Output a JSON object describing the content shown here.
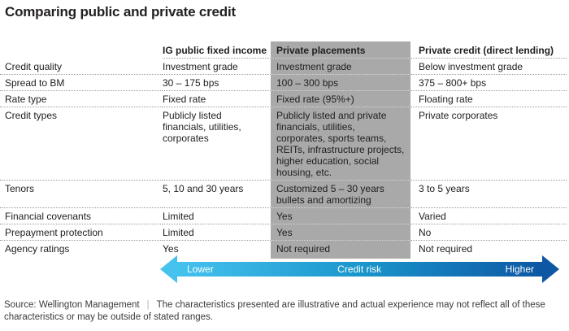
{
  "title": "Comparing public and private credit",
  "table": {
    "columns": [
      "IG public fixed income",
      "Private placements",
      "Private credit (direct lending)"
    ],
    "rows": [
      {
        "label": "Credit quality",
        "ig": "Investment grade",
        "pp": "Investment grade",
        "pc": "Below investment grade"
      },
      {
        "label": "Spread to BM",
        "ig": "30 – 175 bps",
        "pp": "100 – 300 bps",
        "pc": "375 – 800+ bps"
      },
      {
        "label": "Rate type",
        "ig": "Fixed rate",
        "pp": "Fixed rate (95%+)",
        "pc": "Floating rate"
      },
      {
        "label": "Credit types",
        "ig": "Publicly listed financials, utilities, corporates",
        "pp": "Publicly listed and private financials, utilities, corporates, sports teams, REITs, infrastructure projects, higher education, social housing, etc.",
        "pc": "Private corporates"
      },
      {
        "label": "Tenors",
        "ig": "5, 10 and 30 years",
        "pp": "Customized 5 – 30 years bullets and amortizing",
        "pc": "3 to 5 years"
      },
      {
        "label": "Financial covenants",
        "ig": "Limited",
        "pp": "Yes",
        "pc": "Varied"
      },
      {
        "label": "Prepayment protection",
        "ig": "Limited",
        "pp": "Yes",
        "pc": "No"
      },
      {
        "label": "Agency ratings",
        "ig": "Yes",
        "pp": "Not required",
        "pc": "Not required"
      }
    ]
  },
  "risk_arrow": {
    "left_label": "Lower",
    "center_label": "Credit risk",
    "right_label": "Higher"
  },
  "footer": {
    "source": "Source: Wellington Management",
    "separator": "|",
    "disclaimer": "The characteristics presented are illustrative and actual experience may not reflect all of these characteristics or may be outside of stated ranges."
  },
  "colors": {
    "highlight_column_bg": "#a9a9a9",
    "arrow_grad_start": "#45c2ee",
    "arrow_grad_mid": "#1a96cc",
    "arrow_grad_end": "#0d57a3"
  }
}
